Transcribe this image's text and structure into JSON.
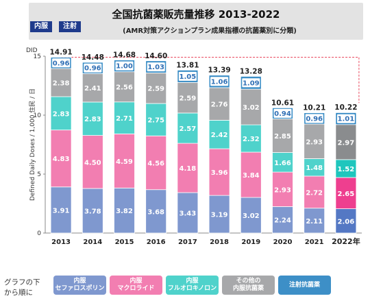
{
  "header": {
    "title": "全国抗菌薬販売量推移 2013-2022",
    "subtitle": "(AMR対策アクションプラン成果指標の抗菌薬別に分類)",
    "badges": [
      "内服",
      "注射"
    ]
  },
  "legend": {
    "caption": "グラフの下\nから順に",
    "items": [
      {
        "label": "内服\nセファロスポリン",
        "color": "#7f98cf"
      },
      {
        "label": "内服\nマクロライド",
        "color": "#f27eb1"
      },
      {
        "label": "内服\nフルオロキノロン",
        "color": "#4fd2cb"
      },
      {
        "label": "その他の\n内服抗菌薬",
        "color": "#a7a8aa"
      },
      {
        "label": "注射抗菌薬",
        "color": "#3d8fc7"
      }
    ]
  },
  "chart_data": {
    "type": "bar",
    "stacked": true,
    "categories": [
      "2013",
      "2014",
      "2015",
      "2016",
      "2017",
      "2018",
      "2019",
      "2020",
      "2021",
      "2022年"
    ],
    "ylabel": "Defined Daily Doses / 1,000 住民 / 日",
    "y_unit": "DID",
    "ylim": [
      0,
      15
    ],
    "yticks": [
      0,
      5,
      10,
      15
    ],
    "series": [
      {
        "name": "内服 セファロスポリン",
        "values": [
          3.91,
          3.78,
          3.82,
          3.68,
          3.43,
          3.19,
          3.02,
          2.24,
          2.11,
          2.06
        ]
      },
      {
        "name": "内服 マクロライド",
        "values": [
          4.83,
          4.5,
          4.59,
          4.56,
          4.18,
          3.96,
          3.84,
          2.93,
          2.72,
          2.65
        ]
      },
      {
        "name": "内服 フルオロキノロン",
        "values": [
          2.83,
          2.83,
          2.71,
          2.75,
          2.57,
          2.42,
          2.32,
          1.66,
          1.48,
          1.52
        ]
      },
      {
        "name": "その他の 内服抗菌薬",
        "values": [
          2.38,
          2.41,
          2.56,
          2.59,
          2.59,
          2.76,
          3.02,
          2.85,
          2.93,
          2.97
        ]
      },
      {
        "name": "注射抗菌薬",
        "values": [
          0.96,
          0.96,
          1.0,
          1.03,
          1.05,
          1.06,
          1.09,
          0.94,
          0.96,
          1.01
        ]
      }
    ],
    "totals": [
      14.91,
      14.48,
      14.68,
      14.6,
      13.81,
      13.39,
      13.28,
      10.61,
      10.21,
      10.22
    ],
    "reference_line_from": "2013",
    "colors": [
      "#7f98cf",
      "#f27eb1",
      "#4fd2cb",
      "#a7a8aa",
      "#3d8fc7"
    ],
    "highlight_colors_last": [
      "#5478c4",
      "#ee3f8f",
      "#1fc6bd",
      "#8a8c8e",
      "#2f86c2"
    ]
  }
}
